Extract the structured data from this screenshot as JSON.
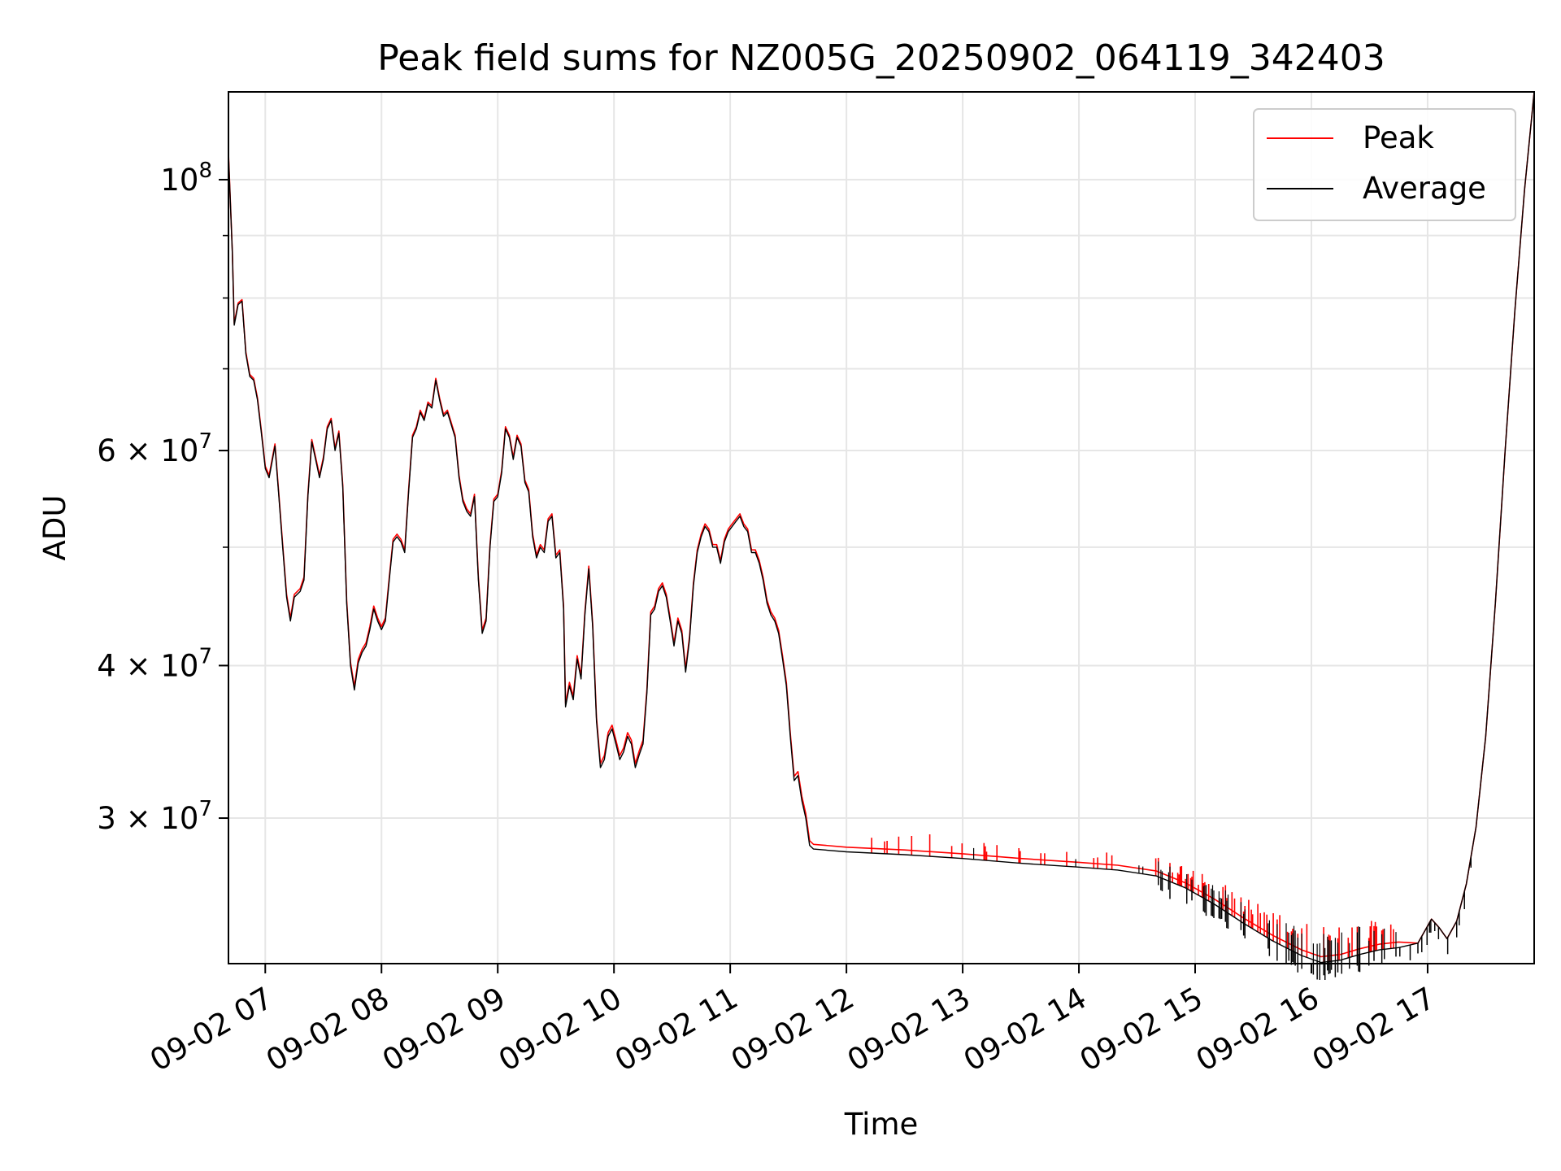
{
  "chart_data": {
    "type": "line",
    "title": "Peak field sums for NZ005G_20250902_064119_342403",
    "xlabel": "Time",
    "ylabel": "ADU",
    "y_scale": "log",
    "ylim": [
      22800000,
      118000000
    ],
    "xlim": [
      "2025-09-02 06:41",
      "2025-09-02 17:55"
    ],
    "grid": true,
    "legend_position": "top-right",
    "x_ticks": [
      {
        "value": "2025-09-02 07:00",
        "label": "09-02 07"
      },
      {
        "value": "2025-09-02 08:00",
        "label": "09-02 08"
      },
      {
        "value": "2025-09-02 09:00",
        "label": "09-02 09"
      },
      {
        "value": "2025-09-02 10:00",
        "label": "09-02 10"
      },
      {
        "value": "2025-09-02 11:00",
        "label": "09-02 11"
      },
      {
        "value": "2025-09-02 12:00",
        "label": "09-02 12"
      },
      {
        "value": "2025-09-02 13:00",
        "label": "09-02 13"
      },
      {
        "value": "2025-09-02 14:00",
        "label": "09-02 14"
      },
      {
        "value": "2025-09-02 15:00",
        "label": "09-02 15"
      },
      {
        "value": "2025-09-02 16:00",
        "label": "09-02 16"
      },
      {
        "value": "2025-09-02 17:00",
        "label": "09-02 17"
      }
    ],
    "y_ticks": [
      {
        "value": 100000000,
        "base": "10",
        "exp": "8"
      },
      {
        "value": 60000000,
        "base": "6 × 10",
        "exp": "7"
      },
      {
        "value": 40000000,
        "base": "4 × 10",
        "exp": "7"
      },
      {
        "value": 30000000,
        "base": "3 × 10",
        "exp": "7"
      }
    ],
    "y_minor_ticks": [
      50000000,
      70000000,
      80000000,
      90000000
    ],
    "series": [
      {
        "name": "Average",
        "color": "#000000",
        "points": [
          [
            "2025-09-02 06:41",
            105000000
          ],
          [
            "2025-09-02 06:43",
            87000000
          ],
          [
            "2025-09-02 06:44",
            76000000
          ],
          [
            "2025-09-02 06:46",
            79000000
          ],
          [
            "2025-09-02 06:48",
            79500000
          ],
          [
            "2025-09-02 06:50",
            72000000
          ],
          [
            "2025-09-02 06:52",
            69000000
          ],
          [
            "2025-09-02 06:54",
            68500000
          ],
          [
            "2025-09-02 06:56",
            66000000
          ],
          [
            "2025-09-02 06:58",
            62000000
          ],
          [
            "2025-09-02 07:00",
            58000000
          ],
          [
            "2025-09-02 07:02",
            57000000
          ],
          [
            "2025-09-02 07:05",
            60500000
          ],
          [
            "2025-09-02 07:07",
            55000000
          ],
          [
            "2025-09-02 07:09",
            50000000
          ],
          [
            "2025-09-02 07:11",
            45500000
          ],
          [
            "2025-09-02 07:13",
            43500000
          ],
          [
            "2025-09-02 07:15",
            45500000
          ],
          [
            "2025-09-02 07:18",
            46000000
          ],
          [
            "2025-09-02 07:20",
            47000000
          ],
          [
            "2025-09-02 07:22",
            55000000
          ],
          [
            "2025-09-02 07:24",
            61000000
          ],
          [
            "2025-09-02 07:26",
            59000000
          ],
          [
            "2025-09-02 07:28",
            57000000
          ],
          [
            "2025-09-02 07:30",
            59000000
          ],
          [
            "2025-09-02 07:32",
            62500000
          ],
          [
            "2025-09-02 07:34",
            63500000
          ],
          [
            "2025-09-02 07:36",
            60000000
          ],
          [
            "2025-09-02 07:38",
            62000000
          ],
          [
            "2025-09-02 07:40",
            56000000
          ],
          [
            "2025-09-02 07:42",
            45000000
          ],
          [
            "2025-09-02 07:44",
            40000000
          ],
          [
            "2025-09-02 07:46",
            38200000
          ],
          [
            "2025-09-02 07:48",
            40200000
          ],
          [
            "2025-09-02 07:50",
            41000000
          ],
          [
            "2025-09-02 07:52",
            41500000
          ],
          [
            "2025-09-02 07:54",
            42800000
          ],
          [
            "2025-09-02 07:56",
            44500000
          ],
          [
            "2025-09-02 07:58",
            43500000
          ],
          [
            "2025-09-02 08:00",
            42800000
          ],
          [
            "2025-09-02 08:02",
            43500000
          ],
          [
            "2025-09-02 08:04",
            47000000
          ],
          [
            "2025-09-02 08:06",
            50500000
          ],
          [
            "2025-09-02 08:08",
            51000000
          ],
          [
            "2025-09-02 08:10",
            50500000
          ],
          [
            "2025-09-02 08:12",
            49500000
          ],
          [
            "2025-09-02 08:14",
            55500000
          ],
          [
            "2025-09-02 08:16",
            61500000
          ],
          [
            "2025-09-02 08:18",
            62500000
          ],
          [
            "2025-09-02 08:20",
            64500000
          ],
          [
            "2025-09-02 08:22",
            63500000
          ],
          [
            "2025-09-02 08:24",
            65500000
          ],
          [
            "2025-09-02 08:26",
            65000000
          ],
          [
            "2025-09-02 08:28",
            68500000
          ],
          [
            "2025-09-02 08:30",
            66000000
          ],
          [
            "2025-09-02 08:32",
            64000000
          ],
          [
            "2025-09-02 08:34",
            64500000
          ],
          [
            "2025-09-02 08:36",
            63000000
          ],
          [
            "2025-09-02 08:38",
            61500000
          ],
          [
            "2025-09-02 08:40",
            57000000
          ],
          [
            "2025-09-02 08:42",
            54500000
          ],
          [
            "2025-09-02 08:44",
            53500000
          ],
          [
            "2025-09-02 08:46",
            53000000
          ],
          [
            "2025-09-02 08:48",
            55000000
          ],
          [
            "2025-09-02 08:50",
            47000000
          ],
          [
            "2025-09-02 08:52",
            42500000
          ],
          [
            "2025-09-02 08:54",
            43500000
          ],
          [
            "2025-09-02 08:56",
            50000000
          ],
          [
            "2025-09-02 08:58",
            54500000
          ],
          [
            "2025-09-02 09:00",
            55000000
          ],
          [
            "2025-09-02 09:02",
            57500000
          ],
          [
            "2025-09-02 09:04",
            62500000
          ],
          [
            "2025-09-02 09:06",
            61500000
          ],
          [
            "2025-09-02 09:08",
            59000000
          ],
          [
            "2025-09-02 09:10",
            61500000
          ],
          [
            "2025-09-02 09:12",
            60500000
          ],
          [
            "2025-09-02 09:14",
            56500000
          ],
          [
            "2025-09-02 09:16",
            55500000
          ],
          [
            "2025-09-02 09:18",
            51000000
          ],
          [
            "2025-09-02 09:20",
            49000000
          ],
          [
            "2025-09-02 09:22",
            50000000
          ],
          [
            "2025-09-02 09:24",
            49500000
          ],
          [
            "2025-09-02 09:26",
            52500000
          ],
          [
            "2025-09-02 09:28",
            53000000
          ],
          [
            "2025-09-02 09:30",
            49000000
          ],
          [
            "2025-09-02 09:32",
            49500000
          ],
          [
            "2025-09-02 09:34",
            44500000
          ],
          [
            "2025-09-02 09:35",
            37000000
          ],
          [
            "2025-09-02 09:37",
            38500000
          ],
          [
            "2025-09-02 09:39",
            37500000
          ],
          [
            "2025-09-02 09:41",
            40500000
          ],
          [
            "2025-09-02 09:43",
            39000000
          ],
          [
            "2025-09-02 09:45",
            44000000
          ],
          [
            "2025-09-02 09:47",
            48000000
          ],
          [
            "2025-09-02 09:49",
            43000000
          ],
          [
            "2025-09-02 09:51",
            36000000
          ],
          [
            "2025-09-02 09:53",
            33000000
          ],
          [
            "2025-09-02 09:55",
            33500000
          ],
          [
            "2025-09-02 09:57",
            35000000
          ],
          [
            "2025-09-02 09:59",
            35500000
          ],
          [
            "2025-09-02 10:01",
            34500000
          ],
          [
            "2025-09-02 10:03",
            33500000
          ],
          [
            "2025-09-02 10:05",
            34000000
          ],
          [
            "2025-09-02 10:07",
            35000000
          ],
          [
            "2025-09-02 10:09",
            34500000
          ],
          [
            "2025-09-02 10:11",
            33000000
          ],
          [
            "2025-09-02 10:13",
            33800000
          ],
          [
            "2025-09-02 10:15",
            34500000
          ],
          [
            "2025-09-02 10:17",
            38000000
          ],
          [
            "2025-09-02 10:19",
            44000000
          ],
          [
            "2025-09-02 10:21",
            44500000
          ],
          [
            "2025-09-02 10:23",
            46000000
          ],
          [
            "2025-09-02 10:25",
            46500000
          ],
          [
            "2025-09-02 10:27",
            45500000
          ],
          [
            "2025-09-02 10:29",
            43500000
          ],
          [
            "2025-09-02 10:31",
            41500000
          ],
          [
            "2025-09-02 10:33",
            43500000
          ],
          [
            "2025-09-02 10:35",
            42500000
          ],
          [
            "2025-09-02 10:37",
            39500000
          ],
          [
            "2025-09-02 10:39",
            42000000
          ],
          [
            "2025-09-02 10:41",
            46500000
          ],
          [
            "2025-09-02 10:43",
            49500000
          ],
          [
            "2025-09-02 10:45",
            51000000
          ],
          [
            "2025-09-02 10:47",
            52000000
          ],
          [
            "2025-09-02 10:49",
            51500000
          ],
          [
            "2025-09-02 10:51",
            50000000
          ],
          [
            "2025-09-02 10:53",
            50000000
          ],
          [
            "2025-09-02 10:55",
            48500000
          ],
          [
            "2025-09-02 10:57",
            50500000
          ],
          [
            "2025-09-02 10:59",
            51500000
          ],
          [
            "2025-09-02 11:01",
            52000000
          ],
          [
            "2025-09-02 11:03",
            52500000
          ],
          [
            "2025-09-02 11:05",
            53000000
          ],
          [
            "2025-09-02 11:07",
            52000000
          ],
          [
            "2025-09-02 11:09",
            51500000
          ],
          [
            "2025-09-02 11:11",
            49500000
          ],
          [
            "2025-09-02 11:13",
            49500000
          ],
          [
            "2025-09-02 11:15",
            48500000
          ],
          [
            "2025-09-02 11:17",
            47000000
          ],
          [
            "2025-09-02 11:19",
            45000000
          ],
          [
            "2025-09-02 11:21",
            44000000
          ],
          [
            "2025-09-02 11:23",
            43500000
          ],
          [
            "2025-09-02 11:25",
            42500000
          ],
          [
            "2025-09-02 11:27",
            40500000
          ],
          [
            "2025-09-02 11:29",
            38500000
          ],
          [
            "2025-09-02 11:31",
            35000000
          ],
          [
            "2025-09-02 11:33",
            32200000
          ],
          [
            "2025-09-02 11:35",
            32500000
          ],
          [
            "2025-09-02 11:37",
            31000000
          ],
          [
            "2025-09-02 11:39",
            30000000
          ],
          [
            "2025-09-02 11:41",
            28500000
          ],
          [
            "2025-09-02 11:43",
            28300000
          ],
          [
            "2025-09-02 12:00",
            28150000
          ],
          [
            "2025-09-02 12:30",
            28000000
          ],
          [
            "2025-09-02 13:00",
            27800000
          ],
          [
            "2025-09-02 13:30",
            27550000
          ],
          [
            "2025-09-02 14:00",
            27350000
          ],
          [
            "2025-09-02 14:20",
            27200000
          ],
          [
            "2025-09-02 14:40",
            26900000
          ],
          [
            "2025-09-02 14:55",
            26300000
          ],
          [
            "2025-09-02 15:10",
            25500000
          ],
          [
            "2025-09-02 15:25",
            24600000
          ],
          [
            "2025-09-02 15:40",
            23800000
          ],
          [
            "2025-09-02 15:55",
            23150000
          ],
          [
            "2025-09-02 16:05",
            22850000
          ],
          [
            "2025-09-02 16:15",
            22950000
          ],
          [
            "2025-09-02 16:25",
            23200000
          ],
          [
            "2025-09-02 16:35",
            23400000
          ],
          [
            "2025-09-02 16:45",
            23500000
          ],
          [
            "2025-09-02 16:55",
            23700000
          ],
          [
            "2025-09-02 17:02",
            24800000
          ],
          [
            "2025-09-02 17:06",
            24400000
          ],
          [
            "2025-09-02 17:10",
            23900000
          ],
          [
            "2025-09-02 17:15",
            24700000
          ],
          [
            "2025-09-02 17:20",
            26500000
          ],
          [
            "2025-09-02 17:25",
            29500000
          ],
          [
            "2025-09-02 17:30",
            35000000
          ],
          [
            "2025-09-02 17:35",
            45000000
          ],
          [
            "2025-09-02 17:40",
            60000000
          ],
          [
            "2025-09-02 17:45",
            78000000
          ],
          [
            "2025-09-02 17:50",
            98000000
          ],
          [
            "2025-09-02 17:55",
            118000000
          ]
        ]
      },
      {
        "name": "Peak",
        "color": "#ff0000",
        "offsets": [
          [
            "2025-09-02 06:41",
            13000000
          ],
          [
            "2025-09-02 07:34",
            400000
          ],
          [
            "2025-09-02 08:28",
            300000
          ],
          [
            "2025-09-02 10:05",
            500000
          ],
          [
            "2025-09-02 11:43",
            800000
          ],
          [
            "2025-09-02 12:10",
            700000
          ],
          [
            "2025-09-02 12:30",
            900000
          ],
          [
            "2025-09-02 13:20",
            600000
          ],
          [
            "2025-09-02 14:10",
            650000
          ],
          [
            "2025-09-02 14:50",
            700000
          ],
          [
            "2025-09-02 15:20",
            900000
          ],
          [
            "2025-09-02 15:50",
            1000000
          ],
          [
            "2025-09-02 16:20",
            1100000
          ],
          [
            "2025-09-02 16:45",
            1000000
          ]
        ]
      }
    ]
  }
}
